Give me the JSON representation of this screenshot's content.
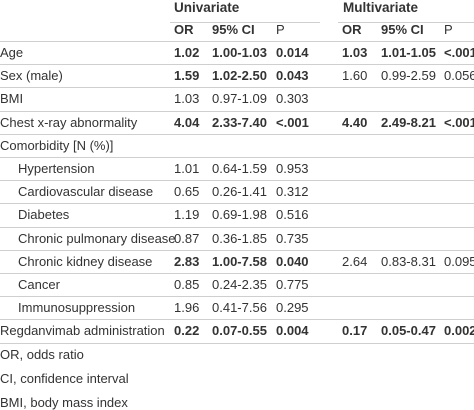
{
  "groups": {
    "univariate": "Univariate",
    "multivariate": "Multivariate"
  },
  "columns": [
    "OR",
    "95% CI",
    "P",
    "OR",
    "95% CI",
    "P"
  ],
  "rows": [
    {
      "label": "Age",
      "uni_or": "1.02",
      "uni_ci": "1.00-1.03",
      "uni_p": "0.014",
      "multi_or": "1.03",
      "multi_ci": "1.01-1.05",
      "multi_p": "<.001",
      "uni_bold": true,
      "multi_bold": true
    },
    {
      "label": "Sex (male)",
      "uni_or": "1.59",
      "uni_ci": "1.02-2.50",
      "uni_p": "0.043",
      "multi_or": "1.60",
      "multi_ci": "0.99-2.59",
      "multi_p": "0.056",
      "uni_bold": true,
      "multi_bold": false
    },
    {
      "label": "BMI",
      "uni_or": "1.03",
      "uni_ci": "0.97-1.09",
      "uni_p": "0.303",
      "multi_or": "",
      "multi_ci": "",
      "multi_p": ""
    },
    {
      "label": "Chest x-ray abnormality",
      "uni_or": "4.04",
      "uni_ci": "2.33-7.40",
      "uni_p": "<.001",
      "multi_or": "4.40",
      "multi_ci": "2.49-8.21",
      "multi_p": "<.001",
      "uni_bold": true,
      "multi_bold": true
    },
    {
      "label": "Comorbidity [N (%)]",
      "uni_or": "",
      "uni_ci": "",
      "uni_p": "",
      "multi_or": "",
      "multi_ci": "",
      "multi_p": ""
    },
    {
      "label": "Hypertension",
      "uni_or": "1.01",
      "uni_ci": "0.64-1.59",
      "uni_p": "0.953",
      "multi_or": "",
      "multi_ci": "",
      "multi_p": "",
      "indent": true
    },
    {
      "label": "Cardiovascular disease",
      "uni_or": "0.65",
      "uni_ci": "0.26-1.41",
      "uni_p": "0.312",
      "multi_or": "",
      "multi_ci": "",
      "multi_p": "",
      "indent": true
    },
    {
      "label": "Diabetes",
      "uni_or": "1.19",
      "uni_ci": "0.69-1.98",
      "uni_p": "0.516",
      "multi_or": "",
      "multi_ci": "",
      "multi_p": "",
      "indent": true
    },
    {
      "label": "Chronic pulmonary disease",
      "uni_or": "0.87",
      "uni_ci": "0.36-1.85",
      "uni_p": "0.735",
      "multi_or": "",
      "multi_ci": "",
      "multi_p": "",
      "indent": true
    },
    {
      "label": "Chronic kidney disease",
      "uni_or": "2.83",
      "uni_ci": "1.00-7.58",
      "uni_p": "0.040",
      "multi_or": "2.64",
      "multi_ci": "0.83-8.31",
      "multi_p": "0.095",
      "indent": true,
      "uni_bold": true,
      "multi_bold": false
    },
    {
      "label": "Cancer",
      "uni_or": "0.85",
      "uni_ci": "0.24-2.35",
      "uni_p": "0.775",
      "multi_or": "",
      "multi_ci": "",
      "multi_p": "",
      "indent": true
    },
    {
      "label": "Immunosuppression",
      "uni_or": "1.96",
      "uni_ci": "0.41-7.56",
      "uni_p": "0.295",
      "multi_or": "",
      "multi_ci": "",
      "multi_p": "",
      "indent": true
    },
    {
      "label": "Regdanvimab administration",
      "uni_or": "0.22",
      "uni_ci": "0.07-0.55",
      "uni_p": "0.004",
      "multi_or": "0.17",
      "multi_ci": "0.05-0.47",
      "multi_p": "0.002",
      "uni_bold": true,
      "multi_bold": true
    }
  ],
  "footnotes": [
    "OR, odds ratio",
    "CI, confidence interval",
    "BMI, body mass index"
  ]
}
